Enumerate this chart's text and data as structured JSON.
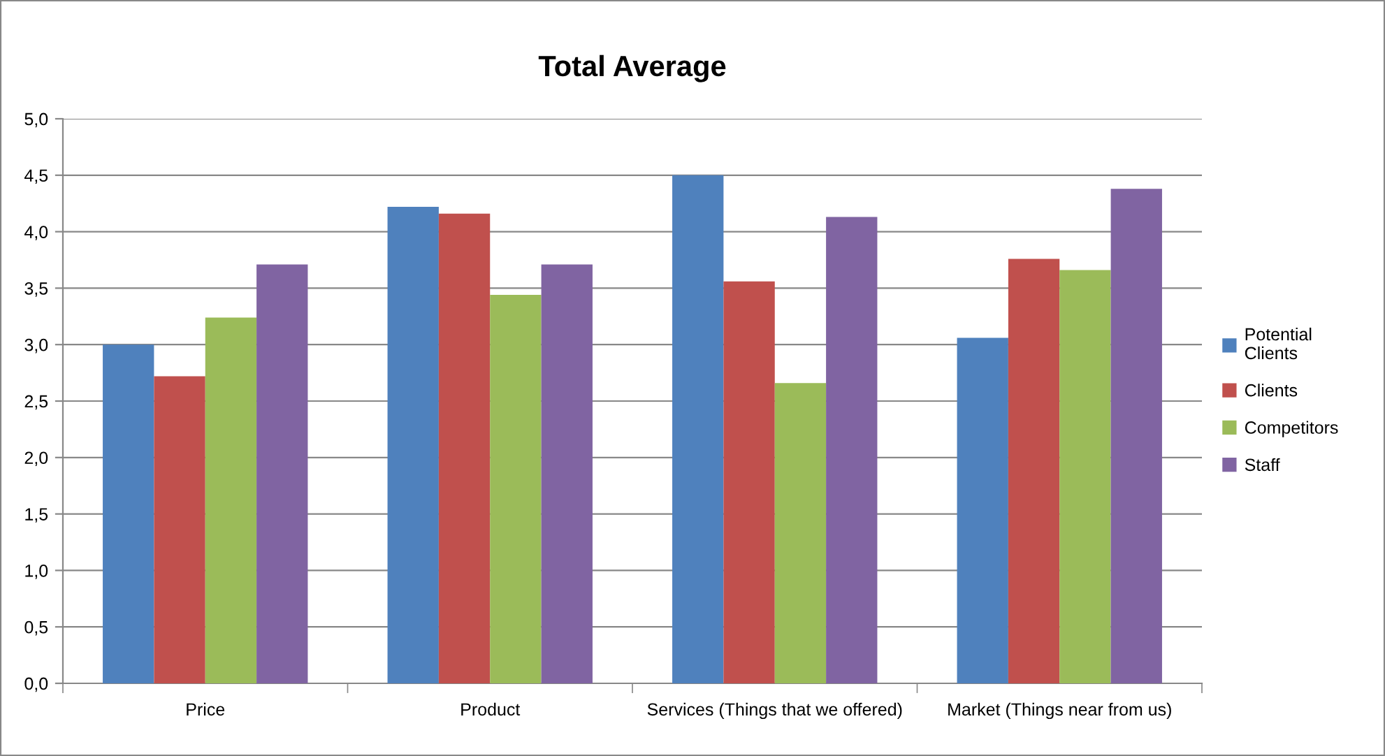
{
  "chart_data": {
    "type": "bar",
    "title": "Total Average",
    "categories": [
      "Price",
      "Product",
      "Services (Things that we offered)",
      "Market (Things near from us)"
    ],
    "series": [
      {
        "name": "Potential\nClients",
        "color": "#4f81bd",
        "values": [
          3.0,
          4.22,
          4.5,
          3.06
        ]
      },
      {
        "name": "Clients",
        "color": "#c0504d",
        "values": [
          2.72,
          4.16,
          3.56,
          3.76
        ]
      },
      {
        "name": "Competitors",
        "color": "#9bbb59",
        "values": [
          3.24,
          3.44,
          2.66,
          3.66
        ]
      },
      {
        "name": "Staff",
        "color": "#8064a2",
        "values": [
          3.71,
          3.71,
          4.13,
          4.38
        ]
      }
    ],
    "ylim": [
      0,
      5
    ],
    "yticks": [
      {
        "value": 0,
        "label": "0,0"
      },
      {
        "value": 0.5,
        "label": "0,5"
      },
      {
        "value": 1,
        "label": "1,0"
      },
      {
        "value": 1.5,
        "label": "1,5"
      },
      {
        "value": 2,
        "label": "2,0"
      },
      {
        "value": 2.5,
        "label": "2,5"
      },
      {
        "value": 3,
        "label": "3,0"
      },
      {
        "value": 3.5,
        "label": "3,5"
      },
      {
        "value": 4,
        "label": "4,0"
      },
      {
        "value": 4.5,
        "label": "4,5"
      },
      {
        "value": 5,
        "label": "5,0"
      }
    ],
    "grid": "y",
    "legend": "right"
  }
}
